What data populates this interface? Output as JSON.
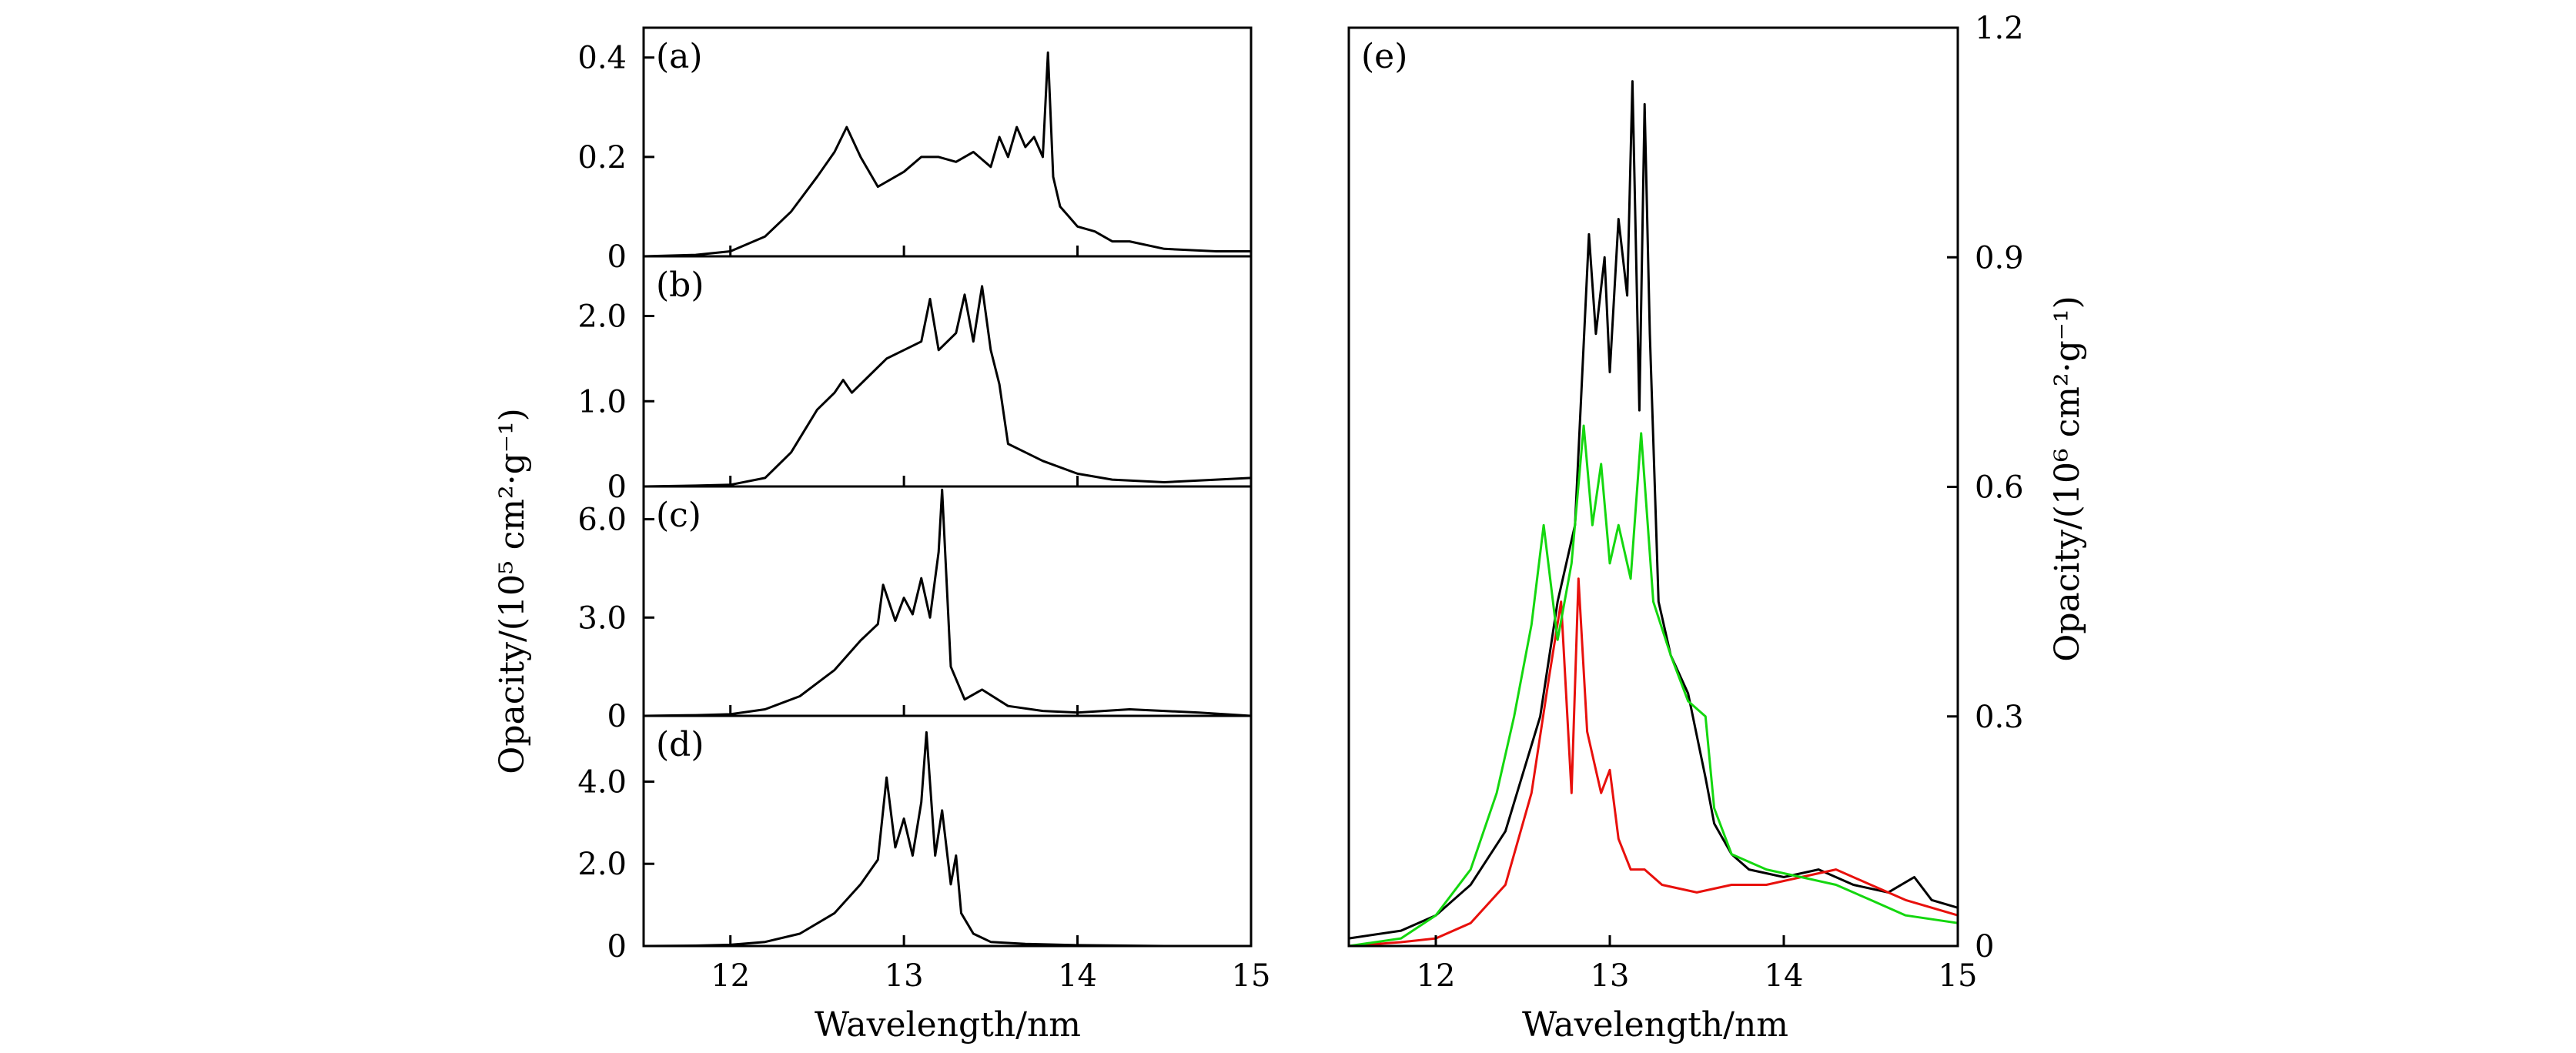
{
  "chart_data": [
    {
      "type": "line",
      "panel_label": "(a)",
      "xlim": [
        11.5,
        15
      ],
      "ylim": [
        0,
        0.46
      ],
      "yticks": [
        0,
        0.2,
        0.4
      ],
      "ytick_labels": [
        "0",
        "0.2",
        "0.4"
      ],
      "series": [
        {
          "color": "#000000",
          "x": [
            11.5,
            11.8,
            12.0,
            12.2,
            12.35,
            12.5,
            12.6,
            12.67,
            12.75,
            12.85,
            13.0,
            13.1,
            13.2,
            13.3,
            13.4,
            13.5,
            13.55,
            13.6,
            13.65,
            13.7,
            13.75,
            13.8,
            13.83,
            13.86,
            13.9,
            13.95,
            14.0,
            14.1,
            14.2,
            14.3,
            14.5,
            14.8,
            15.0
          ],
          "y": [
            0.0,
            0.003,
            0.01,
            0.04,
            0.09,
            0.16,
            0.21,
            0.26,
            0.2,
            0.14,
            0.17,
            0.2,
            0.2,
            0.19,
            0.21,
            0.18,
            0.24,
            0.2,
            0.26,
            0.22,
            0.24,
            0.2,
            0.41,
            0.16,
            0.1,
            0.08,
            0.06,
            0.05,
            0.03,
            0.03,
            0.015,
            0.01,
            0.01
          ]
        }
      ]
    },
    {
      "type": "line",
      "panel_label": "(b)",
      "xlim": [
        11.5,
        15
      ],
      "ylim": [
        0,
        2.7
      ],
      "yticks": [
        0,
        1.0,
        2.0
      ],
      "ytick_labels": [
        "0",
        "1.0",
        "2.0"
      ],
      "series": [
        {
          "color": "#000000",
          "x": [
            11.5,
            11.8,
            12.0,
            12.2,
            12.35,
            12.5,
            12.6,
            12.65,
            12.7,
            12.8,
            12.9,
            13.0,
            13.1,
            13.15,
            13.2,
            13.3,
            13.35,
            13.4,
            13.45,
            13.5,
            13.55,
            13.6,
            13.7,
            13.8,
            14.0,
            14.2,
            14.5,
            14.8,
            15.0
          ],
          "y": [
            0.0,
            0.01,
            0.02,
            0.1,
            0.4,
            0.9,
            1.1,
            1.25,
            1.1,
            1.3,
            1.5,
            1.6,
            1.7,
            2.2,
            1.6,
            1.8,
            2.25,
            1.7,
            2.35,
            1.6,
            1.2,
            0.5,
            0.4,
            0.3,
            0.15,
            0.08,
            0.05,
            0.08,
            0.1
          ]
        }
      ]
    },
    {
      "type": "line",
      "panel_label": "(c)",
      "xlim": [
        11.5,
        15
      ],
      "ylim": [
        0,
        7.0
      ],
      "yticks": [
        0,
        3.0,
        6.0
      ],
      "ytick_labels": [
        "0",
        "3.0",
        "6.0"
      ],
      "series": [
        {
          "color": "#000000",
          "x": [
            11.5,
            11.8,
            12.0,
            12.2,
            12.4,
            12.6,
            12.75,
            12.85,
            12.88,
            12.95,
            13.0,
            13.05,
            13.1,
            13.15,
            13.2,
            13.22,
            13.27,
            13.35,
            13.45,
            13.6,
            13.8,
            14.0,
            14.3,
            14.5,
            14.7,
            15.0
          ],
          "y": [
            0.0,
            0.02,
            0.05,
            0.2,
            0.6,
            1.4,
            2.3,
            2.8,
            4.0,
            2.9,
            3.6,
            3.1,
            4.2,
            3.0,
            5.0,
            6.9,
            1.5,
            0.5,
            0.8,
            0.3,
            0.15,
            0.1,
            0.2,
            0.15,
            0.1,
            0.0
          ]
        }
      ]
    },
    {
      "type": "line",
      "panel_label": "(d)",
      "xlim": [
        11.5,
        15
      ],
      "ylim": [
        0,
        5.6
      ],
      "yticks": [
        0,
        2.0,
        4.0
      ],
      "ytick_labels": [
        "0",
        "2.0",
        "4.0"
      ],
      "series": [
        {
          "color": "#000000",
          "x": [
            11.5,
            11.8,
            12.0,
            12.2,
            12.4,
            12.6,
            12.75,
            12.85,
            12.9,
            12.95,
            13.0,
            13.05,
            13.1,
            13.13,
            13.18,
            13.22,
            13.27,
            13.3,
            13.33,
            13.4,
            13.5,
            13.7,
            14.0,
            14.5,
            15.0
          ],
          "y": [
            0.0,
            0.01,
            0.03,
            0.1,
            0.3,
            0.8,
            1.5,
            2.1,
            4.1,
            2.4,
            3.1,
            2.2,
            3.5,
            5.2,
            2.2,
            3.3,
            1.5,
            2.2,
            0.8,
            0.3,
            0.1,
            0.05,
            0.02,
            0.0,
            0.0
          ]
        }
      ]
    },
    {
      "type": "line",
      "panel_label": "(e)",
      "xlim": [
        11.5,
        15
      ],
      "ylim": [
        0,
        1.2
      ],
      "xticks": [
        12,
        13,
        14,
        15
      ],
      "xtick_labels": [
        "12",
        "13",
        "14",
        "15"
      ],
      "yticks": [
        0,
        0.3,
        0.6,
        0.9,
        1.2
      ],
      "ytick_labels": [
        "0",
        "0.3",
        "0.6",
        "0.9",
        "1.2"
      ],
      "series": [
        {
          "color": "#000000",
          "x": [
            11.5,
            11.8,
            12.0,
            12.2,
            12.4,
            12.6,
            12.7,
            12.8,
            12.88,
            12.92,
            12.97,
            13.0,
            13.05,
            13.1,
            13.13,
            13.17,
            13.2,
            13.23,
            13.28,
            13.35,
            13.45,
            13.55,
            13.6,
            13.7,
            13.8,
            14.0,
            14.2,
            14.4,
            14.6,
            14.75,
            14.85,
            15.0
          ],
          "y": [
            0.01,
            0.02,
            0.04,
            0.08,
            0.15,
            0.3,
            0.45,
            0.55,
            0.93,
            0.8,
            0.9,
            0.75,
            0.95,
            0.85,
            1.13,
            0.7,
            1.1,
            0.8,
            0.45,
            0.38,
            0.33,
            0.22,
            0.16,
            0.12,
            0.1,
            0.09,
            0.1,
            0.08,
            0.07,
            0.09,
            0.06,
            0.05
          ]
        },
        {
          "color": "#e8100c",
          "x": [
            11.5,
            11.8,
            12.0,
            12.2,
            12.4,
            12.55,
            12.65,
            12.72,
            12.78,
            12.82,
            12.87,
            12.95,
            13.0,
            13.05,
            13.12,
            13.2,
            13.3,
            13.5,
            13.7,
            13.9,
            14.1,
            14.3,
            14.5,
            14.7,
            15.0
          ],
          "y": [
            0.0,
            0.005,
            0.01,
            0.03,
            0.08,
            0.2,
            0.35,
            0.45,
            0.2,
            0.48,
            0.28,
            0.2,
            0.23,
            0.14,
            0.1,
            0.1,
            0.08,
            0.07,
            0.08,
            0.08,
            0.09,
            0.1,
            0.08,
            0.06,
            0.04
          ]
        },
        {
          "color": "#14d70f",
          "x": [
            11.5,
            11.8,
            12.0,
            12.2,
            12.35,
            12.45,
            12.55,
            12.62,
            12.7,
            12.78,
            12.85,
            12.9,
            12.95,
            13.0,
            13.05,
            13.12,
            13.18,
            13.25,
            13.35,
            13.45,
            13.55,
            13.6,
            13.7,
            13.9,
            14.1,
            14.3,
            14.5,
            14.7,
            15.0
          ],
          "y": [
            0.0,
            0.01,
            0.04,
            0.1,
            0.2,
            0.3,
            0.42,
            0.55,
            0.4,
            0.5,
            0.68,
            0.55,
            0.63,
            0.5,
            0.55,
            0.48,
            0.67,
            0.45,
            0.38,
            0.32,
            0.3,
            0.18,
            0.12,
            0.1,
            0.09,
            0.08,
            0.06,
            0.04,
            0.03
          ]
        }
      ]
    }
  ],
  "left_xaxis": {
    "label": "Wavelength/nm",
    "xticks": [
      12,
      13,
      14,
      15
    ],
    "xtick_labels": [
      "12",
      "13",
      "14",
      "15"
    ]
  },
  "left_ylabel": "Opacity/(10⁵ cm²·g⁻¹)",
  "right_xlabel": "Wavelength/nm",
  "right_ylabel": "Opacity/(10⁶ cm²·g⁻¹)"
}
